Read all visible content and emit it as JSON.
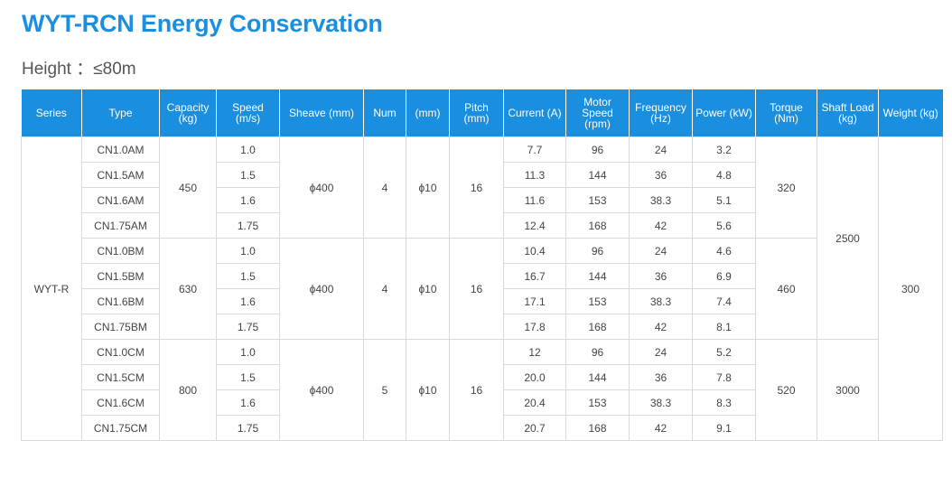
{
  "title": "WYT-RCN Energy Conservation",
  "subtitle": "Height ：≤80m",
  "headers": [
    [
      "Series"
    ],
    [
      "Type"
    ],
    [
      "Capacity",
      "(kg)"
    ],
    [
      "Speed",
      "(m/s)"
    ],
    [
      "Sheave (mm)"
    ],
    [
      "Num"
    ],
    [
      "(mm)"
    ],
    [
      "Pitch (mm)"
    ],
    [
      "Current (A)"
    ],
    [
      "Motor Speed",
      "(rpm)"
    ],
    [
      "Frequency",
      "(Hz)"
    ],
    [
      "Power (kW)"
    ],
    [
      "Torque (Nm)"
    ],
    [
      "Shaft Load",
      "(kg)"
    ],
    [
      "Weight (kg)"
    ]
  ],
  "series": "WYT-R",
  "weight": "300",
  "groups": [
    {
      "capacity": "450",
      "sheave": "ϕ400",
      "num": "4",
      "rope": "ϕ10",
      "pitch": "16",
      "torque": "320",
      "rows": [
        {
          "type": "CN1.0AM",
          "speed": "1.0",
          "current": "7.7",
          "rpm": "96",
          "freq": "24",
          "power": "3.2"
        },
        {
          "type": "CN1.5AM",
          "speed": "1.5",
          "current": "11.3",
          "rpm": "144",
          "freq": "36",
          "power": "4.8"
        },
        {
          "type": "CN1.6AM",
          "speed": "1.6",
          "current": "11.6",
          "rpm": "153",
          "freq": "38.3",
          "power": "5.1"
        },
        {
          "type": "CN1.75AM",
          "speed": "1.75",
          "current": "12.4",
          "rpm": "168",
          "freq": "42",
          "power": "5.6"
        }
      ]
    },
    {
      "capacity": "630",
      "sheave": "ϕ400",
      "num": "4",
      "rope": "ϕ10",
      "pitch": "16",
      "torque": "460",
      "rows": [
        {
          "type": "CN1.0BM",
          "speed": "1.0",
          "current": "10.4",
          "rpm": "96",
          "freq": "24",
          "power": "4.6"
        },
        {
          "type": "CN1.5BM",
          "speed": "1.5",
          "current": "16.7",
          "rpm": "144",
          "freq": "36",
          "power": "6.9"
        },
        {
          "type": "CN1.6BM",
          "speed": "1.6",
          "current": "17.1",
          "rpm": "153",
          "freq": "38.3",
          "power": "7.4"
        },
        {
          "type": "CN1.75BM",
          "speed": "1.75",
          "current": "17.8",
          "rpm": "168",
          "freq": "42",
          "power": "8.1"
        }
      ]
    },
    {
      "capacity": "800",
      "sheave": "ϕ400",
      "num": "5",
      "rope": "ϕ10",
      "pitch": "16",
      "torque": "520",
      "rows": [
        {
          "type": "CN1.0CM",
          "speed": "1.0",
          "current": "12",
          "rpm": "96",
          "freq": "24",
          "power": "5.2"
        },
        {
          "type": "CN1.5CM",
          "speed": "1.5",
          "current": "20.0",
          "rpm": "144",
          "freq": "36",
          "power": "7.8"
        },
        {
          "type": "CN1.6CM",
          "speed": "1.6",
          "current": "20.4",
          "rpm": "153",
          "freq": "38.3",
          "power": "8.3"
        },
        {
          "type": "CN1.75CM",
          "speed": "1.75",
          "current": "20.7",
          "rpm": "168",
          "freq": "42",
          "power": "9.1"
        }
      ]
    }
  ],
  "shaft_load": [
    "2500",
    "3000"
  ]
}
